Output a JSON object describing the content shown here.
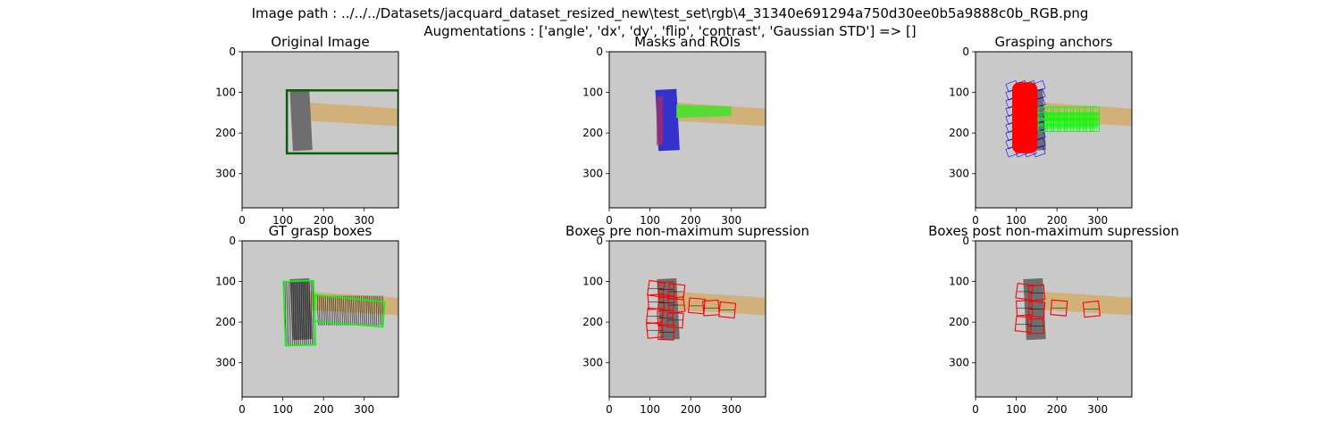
{
  "figure": {
    "suptitle_line1": "Image path : ../../../Datasets/jacquard_dataset_resized_new\\test_set\\rgb\\4_31340e691294a750d30ee0b5a9888c0b_RGB.png",
    "suptitle_line2": "Augmentations : ['angle', 'dx', 'dy', 'flip', 'contrast', 'Gaussian STD'] => []"
  },
  "axes_ticks": {
    "x": [
      "0",
      "100",
      "200",
      "300"
    ],
    "y": [
      "0",
      "100",
      "200",
      "300"
    ],
    "x_values": [
      0,
      100,
      200,
      300
    ],
    "y_values": [
      0,
      100,
      200,
      300
    ],
    "image_size": 384
  },
  "panels": [
    {
      "id": "original",
      "title": "Original Image"
    },
    {
      "id": "masks",
      "title": "Masks and ROIs"
    },
    {
      "id": "anchors",
      "title": "Grasping anchors"
    },
    {
      "id": "gt",
      "title": "GT grasp boxes"
    },
    {
      "id": "pre_nms",
      "title": "Boxes pre non-maximum supression"
    },
    {
      "id": "post_nms",
      "title": "Boxes post non-maximum supression"
    }
  ],
  "colors": {
    "background": "#c9c9c9",
    "handle": "#d2b07a",
    "hammer_head": "#6e6e6e",
    "roi_box": "#0a5e0a",
    "mask_head": "#3333cc",
    "mask_handle": "#55dd33",
    "anchor_red": "#ff0000",
    "anchor_blue": "#0000ff",
    "anchor_green": "#00ff00",
    "grasp_line": "#000000"
  }
}
